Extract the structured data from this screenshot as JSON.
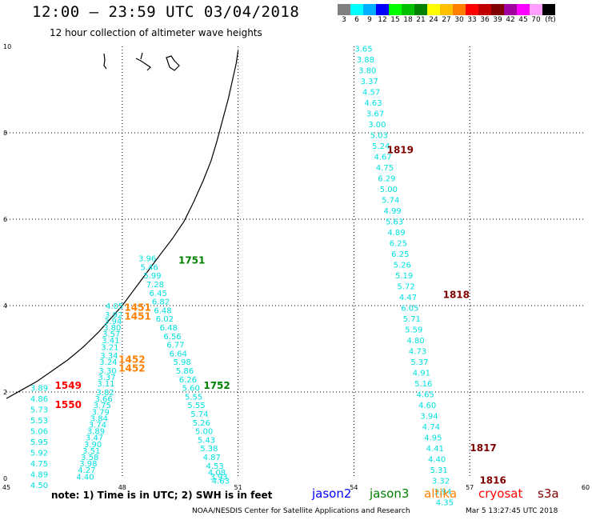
{
  "title": "12:00 – 23:59 UTC 03/04/2018",
  "subtitle": "12 hour collection of altimeter wave heights",
  "legend": {
    "unit": "(ft)",
    "bins": [
      {
        "label": "3",
        "color": "#808080"
      },
      {
        "label": "6",
        "color": "#00ffff"
      },
      {
        "label": "9",
        "color": "#00b0ff"
      },
      {
        "label": "12",
        "color": "#0000ff"
      },
      {
        "label": "15",
        "color": "#00ff00"
      },
      {
        "label": "18",
        "color": "#00c000"
      },
      {
        "label": "21",
        "color": "#008000"
      },
      {
        "label": "24",
        "color": "#ffff00"
      },
      {
        "label": "27",
        "color": "#ffc000"
      },
      {
        "label": "30",
        "color": "#ff8000"
      },
      {
        "label": "33",
        "color": "#ff0000"
      },
      {
        "label": "36",
        "color": "#c00000"
      },
      {
        "label": "39",
        "color": "#800000"
      },
      {
        "label": "42",
        "color": "#a000a0"
      },
      {
        "label": "45",
        "color": "#ff00ff"
      },
      {
        "label": "70",
        "color": "#ffa0ff"
      },
      {
        "label": "",
        "color": "#000000"
      }
    ]
  },
  "map": {
    "lon_ticks": [
      "45",
      "48",
      "51",
      "54",
      "57",
      "60"
    ],
    "lat_ticks": [
      "0",
      "2",
      "4",
      "6",
      "8",
      "10"
    ],
    "lon_range": [
      45,
      60
    ],
    "lat_range": [
      0,
      10
    ]
  },
  "tracks": [
    {
      "color": "#00e0e0",
      "values": [
        "3.65",
        "3.88",
        "3.80",
        "3.37",
        "4.57",
        "4.63",
        "3.67",
        "3.00",
        "5.03",
        "5.24",
        "4.67",
        "4.75",
        "6.29",
        "5.00",
        "5.74",
        "4.99",
        "5.63",
        "4.89",
        "6.25",
        "6.25",
        "5.26",
        "5.19",
        "5.72",
        "4.47",
        "6.05",
        "5.71",
        "5.59",
        "4.80",
        "4.73",
        "5.37",
        "4.91",
        "5.16",
        "4.65",
        "4.60",
        "3.94",
        "4.74",
        "4.95",
        "4.41",
        "4.40",
        "5.31",
        "3.32",
        "3.94",
        "4.35"
      ],
      "points": [
        [
          54.25,
          9.95
        ],
        [
          54.3,
          9.7
        ],
        [
          54.35,
          9.45
        ],
        [
          54.4,
          9.2
        ],
        [
          54.45,
          8.95
        ],
        [
          54.5,
          8.7
        ],
        [
          54.55,
          8.45
        ],
        [
          54.6,
          8.2
        ],
        [
          54.65,
          7.95
        ],
        [
          54.7,
          7.7
        ],
        [
          54.75,
          7.45
        ],
        [
          54.8,
          7.2
        ],
        [
          54.85,
          6.95
        ],
        [
          54.9,
          6.7
        ],
        [
          54.95,
          6.45
        ],
        [
          55.0,
          6.2
        ],
        [
          55.05,
          5.95
        ],
        [
          55.1,
          5.7
        ],
        [
          55.15,
          5.45
        ],
        [
          55.2,
          5.2
        ],
        [
          55.25,
          4.95
        ],
        [
          55.3,
          4.7
        ],
        [
          55.35,
          4.45
        ],
        [
          55.4,
          4.2
        ],
        [
          55.45,
          3.95
        ],
        [
          55.5,
          3.7
        ],
        [
          55.55,
          3.45
        ],
        [
          55.6,
          3.2
        ],
        [
          55.65,
          2.95
        ],
        [
          55.7,
          2.7
        ],
        [
          55.75,
          2.45
        ],
        [
          55.8,
          2.2
        ],
        [
          55.85,
          1.95
        ],
        [
          55.9,
          1.7
        ],
        [
          55.95,
          1.45
        ],
        [
          56.0,
          1.2
        ],
        [
          56.05,
          0.95
        ],
        [
          56.1,
          0.7
        ],
        [
          56.15,
          0.45
        ],
        [
          56.2,
          0.2
        ],
        [
          56.25,
          -0.05
        ],
        [
          56.3,
          -0.3
        ],
        [
          56.35,
          -0.55
        ]
      ]
    },
    {
      "color": "#00e0e0",
      "values": [
        "3.96",
        "5.46",
        "5.99",
        "7.28",
        "6.45",
        "6.82",
        "6.48",
        "6.02",
        "6.48",
        "6.56",
        "6.77",
        "6.64",
        "5.98",
        "5.86",
        "6.26",
        "5.60",
        "5.55",
        "5.55",
        "5.74",
        "5.26",
        "5.00",
        "5.43",
        "5.38",
        "4.87",
        "4.53",
        "4.08",
        "3.93",
        "4.63"
      ],
      "points": [
        [
          48.65,
          5.1
        ],
        [
          48.7,
          4.9
        ],
        [
          48.78,
          4.7
        ],
        [
          48.85,
          4.5
        ],
        [
          48.93,
          4.3
        ],
        [
          49.0,
          4.1
        ],
        [
          49.05,
          3.9
        ],
        [
          49.1,
          3.7
        ],
        [
          49.2,
          3.5
        ],
        [
          49.3,
          3.3
        ],
        [
          49.38,
          3.1
        ],
        [
          49.45,
          2.9
        ],
        [
          49.55,
          2.7
        ],
        [
          49.62,
          2.5
        ],
        [
          49.7,
          2.3
        ],
        [
          49.78,
          2.1
        ],
        [
          49.85,
          1.9
        ],
        [
          49.92,
          1.7
        ],
        [
          50.0,
          1.5
        ],
        [
          50.05,
          1.3
        ],
        [
          50.12,
          1.1
        ],
        [
          50.18,
          0.9
        ],
        [
          50.25,
          0.7
        ],
        [
          50.32,
          0.5
        ],
        [
          50.4,
          0.3
        ],
        [
          50.45,
          0.15
        ],
        [
          50.5,
          0.05
        ],
        [
          50.55,
          -0.05
        ]
      ]
    },
    {
      "color": "#00e0e0",
      "values": [
        "4.05",
        "3.92",
        "3.94",
        "3.80",
        "3.57",
        "3.41",
        "3.21",
        "3.34",
        "3.24",
        "3.30",
        "3.37",
        "3.11",
        "3.82",
        "3.66",
        "3.75",
        "3.79",
        "3.84",
        "3.74",
        "3.89",
        "3.47",
        "3.90",
        "3.51",
        "3.58",
        "3.98",
        "4.27",
        "4.40"
      ],
      "points": [
        [
          47.8,
          4.0
        ],
        [
          47.78,
          3.8
        ],
        [
          47.76,
          3.65
        ],
        [
          47.74,
          3.5
        ],
        [
          47.72,
          3.35
        ],
        [
          47.7,
          3.2
        ],
        [
          47.68,
          3.05
        ],
        [
          47.66,
          2.85
        ],
        [
          47.64,
          2.7
        ],
        [
          47.62,
          2.5
        ],
        [
          47.6,
          2.35
        ],
        [
          47.58,
          2.2
        ],
        [
          47.56,
          2.0
        ],
        [
          47.52,
          1.85
        ],
        [
          47.48,
          1.7
        ],
        [
          47.44,
          1.55
        ],
        [
          47.4,
          1.4
        ],
        [
          47.36,
          1.25
        ],
        [
          47.32,
          1.1
        ],
        [
          47.28,
          0.95
        ],
        [
          47.24,
          0.8
        ],
        [
          47.2,
          0.65
        ],
        [
          47.16,
          0.5
        ],
        [
          47.12,
          0.35
        ],
        [
          47.08,
          0.2
        ],
        [
          47.04,
          0.05
        ]
      ]
    },
    {
      "color": "#00e0e0",
      "values": [
        "3.89",
        "4.86",
        "5.73",
        "5.53",
        "5.06",
        "5.95",
        "5.92",
        "4.75",
        "4.89",
        "4.50"
      ],
      "points": [
        [
          45.85,
          2.1
        ],
        [
          45.85,
          1.85
        ],
        [
          45.85,
          1.6
        ],
        [
          45.85,
          1.35
        ],
        [
          45.85,
          1.1
        ],
        [
          45.85,
          0.85
        ],
        [
          45.85,
          0.6
        ],
        [
          45.85,
          0.35
        ],
        [
          45.85,
          0.1
        ],
        [
          45.85,
          -0.15
        ]
      ]
    }
  ],
  "passes": [
    {
      "time": "1819",
      "color": "#800000",
      "lon": 55.2,
      "lat": 7.6
    },
    {
      "time": "1818",
      "color": "#800000",
      "lon": 56.65,
      "lat": 4.25
    },
    {
      "time": "1817",
      "color": "#800000",
      "lon": 57.35,
      "lat": 0.7
    },
    {
      "time": "1816",
      "color": "#800000",
      "lon": 57.6,
      "lat": -0.05
    },
    {
      "time": "1751",
      "color": "#008000",
      "lon": 49.8,
      "lat": 5.05
    },
    {
      "time": "1752",
      "color": "#008000",
      "lon": 50.45,
      "lat": 2.15
    },
    {
      "time": "1451",
      "color": "#ff8000",
      "lon": 48.4,
      "lat": 3.95
    },
    {
      "time": "1451",
      "color": "#ff8000",
      "lon": 48.4,
      "lat": 3.75
    },
    {
      "time": "1452",
      "color": "#ff8000",
      "lon": 48.25,
      "lat": 2.75
    },
    {
      "time": "1452",
      "color": "#ff8000",
      "lon": 48.25,
      "lat": 2.55
    },
    {
      "time": "1549",
      "color": "#ff0000",
      "lon": 46.6,
      "lat": 2.15
    },
    {
      "time": "1550",
      "color": "#ff0000",
      "lon": 46.6,
      "lat": 1.7
    }
  ],
  "note": "note:  1) Time is in UTC;  2) SWH is in feet",
  "satellites": [
    {
      "name": "jason2",
      "color": "#0000ff"
    },
    {
      "name": "jason3",
      "color": "#008000"
    },
    {
      "name": "altika",
      "color": "#ff8000"
    },
    {
      "name": "cryosat",
      "color": "#ff0000"
    },
    {
      "name": "s3a",
      "color": "#800000"
    }
  ],
  "credit": "NOAA/NESDIS Center for Satellite Applications and Research",
  "credit_time": "Mar  5 13:27:45 UTC 2018"
}
